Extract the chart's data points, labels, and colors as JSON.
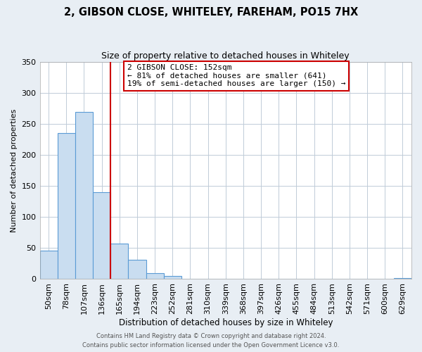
{
  "title": "2, GIBSON CLOSE, WHITELEY, FAREHAM, PO15 7HX",
  "subtitle": "Size of property relative to detached houses in Whiteley",
  "xlabel": "Distribution of detached houses by size in Whiteley",
  "ylabel": "Number of detached properties",
  "bar_labels": [
    "50sqm",
    "78sqm",
    "107sqm",
    "136sqm",
    "165sqm",
    "194sqm",
    "223sqm",
    "252sqm",
    "281sqm",
    "310sqm",
    "339sqm",
    "368sqm",
    "397sqm",
    "426sqm",
    "455sqm",
    "484sqm",
    "513sqm",
    "542sqm",
    "571sqm",
    "600sqm",
    "629sqm"
  ],
  "bar_values": [
    46,
    235,
    269,
    140,
    57,
    31,
    10,
    5,
    0,
    0,
    0,
    0,
    0,
    0,
    0,
    0,
    0,
    0,
    0,
    0,
    2
  ],
  "bar_color": "#c9ddf0",
  "bar_edge_color": "#5b9bd5",
  "background_color": "#e8eef4",
  "plot_bg_color": "#ffffff",
  "grid_color": "#c0ccd8",
  "vline_color": "#cc0000",
  "annotation_title": "2 GIBSON CLOSE: 152sqm",
  "annotation_line1": "← 81% of detached houses are smaller (641)",
  "annotation_line2": "19% of semi-detached houses are larger (150) →",
  "annotation_box_color": "#ffffff",
  "annotation_border_color": "#cc0000",
  "ylim": [
    0,
    350
  ],
  "yticks": [
    0,
    50,
    100,
    150,
    200,
    250,
    300,
    350
  ],
  "footer1": "Contains HM Land Registry data © Crown copyright and database right 2024.",
  "footer2": "Contains public sector information licensed under the Open Government Licence v3.0."
}
